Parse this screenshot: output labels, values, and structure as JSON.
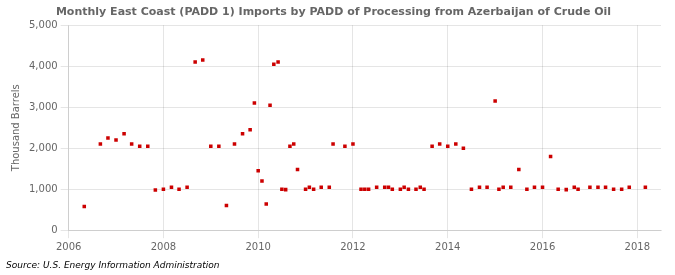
{
  "chart_data": {
    "type": "scatter",
    "title": "Monthly East Coast (PADD 1) Imports by PADD of Processing from Azerbaijan of Crude Oil",
    "ylabel": "Thousand Barrels",
    "annotations": [
      "Source: U.S. Energy Information Administration"
    ],
    "color": "#cc0000",
    "marker": "square",
    "grid": true,
    "xlim": [
      2006.0,
      2018.5
    ],
    "xticks": [
      2006,
      2008,
      2010,
      2012,
      2014,
      2016,
      2018
    ],
    "ylim": [
      0,
      5000
    ],
    "yticks": [
      0,
      {
        "value": 1000,
        "label": "1,000"
      },
      {
        "value": 2000,
        "label": "2,000"
      },
      {
        "value": 3000,
        "label": "3,000"
      },
      {
        "value": 4000,
        "label": "4,000"
      },
      {
        "value": 5000,
        "label": "5,000"
      }
    ],
    "x": [
      2006.33,
      2006.67,
      2006.83,
      2007.0,
      2007.17,
      2007.33,
      2007.5,
      2007.67,
      2007.83,
      2008.0,
      2008.17,
      2008.33,
      2008.5,
      2008.67,
      2008.83,
      2009.0,
      2009.17,
      2009.33,
      2009.5,
      2009.67,
      2009.83,
      2009.92,
      2010.0,
      2010.08,
      2010.17,
      2010.25,
      2010.33,
      2010.42,
      2010.5,
      2010.58,
      2010.67,
      2010.75,
      2010.83,
      2011.0,
      2011.08,
      2011.17,
      2011.33,
      2011.5,
      2011.58,
      2011.83,
      2012.0,
      2012.17,
      2012.25,
      2012.33,
      2012.5,
      2012.67,
      2012.75,
      2012.83,
      2013.0,
      2013.08,
      2013.17,
      2013.33,
      2013.42,
      2013.5,
      2013.67,
      2013.83,
      2014.0,
      2014.17,
      2014.33,
      2014.5,
      2014.67,
      2014.83,
      2015.0,
      2015.08,
      2015.17,
      2015.33,
      2015.5,
      2015.67,
      2015.83,
      2016.0,
      2016.17,
      2016.33,
      2016.5,
      2016.67,
      2016.75,
      2017.0,
      2017.17,
      2017.33,
      2017.5,
      2017.67,
      2017.83,
      2018.17
    ],
    "values": [
      580,
      2100,
      2250,
      2200,
      2350,
      2100,
      2050,
      2050,
      980,
      1000,
      1050,
      1000,
      1050,
      4100,
      4150,
      2050,
      2050,
      600,
      2100,
      2350,
      2450,
      3100,
      1450,
      1200,
      640,
      3050,
      4050,
      4100,
      1000,
      990,
      2050,
      2100,
      1480,
      1000,
      1050,
      1000,
      1050,
      1050,
      2100,
      2050,
      2100,
      1000,
      1000,
      1000,
      1050,
      1050,
      1050,
      1000,
      1000,
      1050,
      1000,
      1000,
      1050,
      1000,
      2050,
      2100,
      2050,
      2100,
      2000,
      1000,
      1050,
      1050,
      3150,
      1000,
      1050,
      1050,
      1480,
      1000,
      1050,
      1050,
      1800,
      1000,
      990,
      1050,
      1000,
      1050,
      1050,
      1050,
      1000,
      1000,
      1050,
      1050
    ]
  }
}
